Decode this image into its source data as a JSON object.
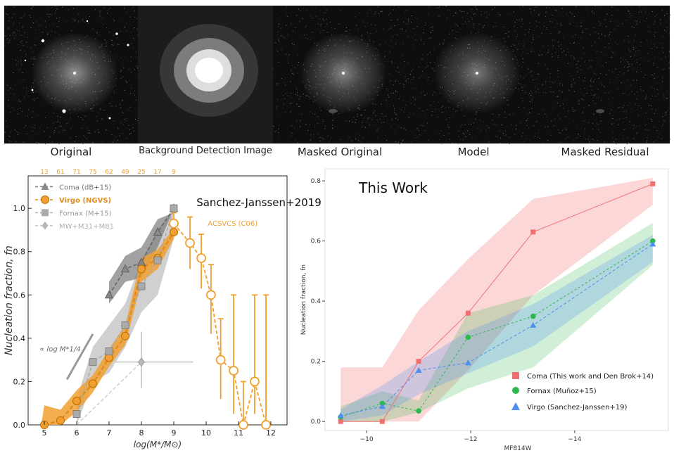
{
  "panels": [
    {
      "caption": "Original",
      "blur": 1.2,
      "core": 1.0,
      "halo": 0.55,
      "stars": true
    },
    {
      "caption": "Background Detection Image",
      "blur": 10,
      "core": 1.0,
      "halo": 1.0,
      "stars": false
    },
    {
      "caption": "Masked Original",
      "blur": 1.2,
      "core": 0.9,
      "halo": 0.5,
      "stars": false
    },
    {
      "caption": "Model",
      "blur": 1.2,
      "core": 0.9,
      "halo": 0.45,
      "stars": false
    },
    {
      "caption": "Masked Residual",
      "blur": 1.2,
      "core": 0.0,
      "halo": 0.0,
      "stars": false
    }
  ],
  "chart_data": [
    {
      "type": "line",
      "title": "Sanchez-Janssen+2019",
      "xlabel": "log(M*/M⊙)",
      "ylabel": "Nucleation fraction, fn",
      "xlim": [
        4.5,
        12.5
      ],
      "ylim": [
        0,
        1.15
      ],
      "xticks": [
        5,
        6,
        7,
        8,
        9,
        10,
        11,
        12
      ],
      "yticks": [
        "0.0",
        "0.2",
        "0.4",
        "0.6",
        "0.8",
        "1.0"
      ],
      "top_counts": {
        "x": [
          5.0,
          5.5,
          6.0,
          6.5,
          7.0,
          7.5,
          8.0,
          8.5,
          9.0
        ],
        "labels": [
          "13",
          "61",
          "71",
          "75",
          "62",
          "49",
          "25",
          "17",
          "9"
        ]
      },
      "slope_label": "∝ log M*1/4",
      "annotation": "ACSVCS (C06)",
      "legend": {
        "position": "top-left",
        "entries": [
          "Coma (dB+15)",
          "Virgo (NGVS)",
          "Fornax (M+15)",
          "MW+M31+M81"
        ]
      },
      "series": [
        {
          "name": "Coma (dB+15)",
          "color": "#888888",
          "marker": "triangle",
          "x": [
            7.0,
            7.5,
            8.0,
            8.5,
            9.0
          ],
          "y": [
            0.6,
            0.72,
            0.75,
            0.89,
            1.0
          ]
        },
        {
          "name": "Virgo (NGVS)",
          "color": "#f0a030",
          "marker": "circle",
          "x": [
            5.0,
            5.5,
            6.0,
            6.5,
            7.0,
            7.5,
            8.0,
            8.5,
            9.0
          ],
          "y": [
            0.0,
            0.02,
            0.11,
            0.19,
            0.31,
            0.41,
            0.72,
            0.77,
            0.89
          ]
        },
        {
          "name": "Fornax (M+15)",
          "color": "#aaaaaa",
          "marker": "square",
          "x": [
            6.0,
            6.5,
            7.0,
            7.5,
            8.0,
            8.5,
            9.0
          ],
          "y": [
            0.05,
            0.29,
            0.34,
            0.46,
            0.64,
            0.76,
            1.0
          ]
        },
        {
          "name": "MW+M31+M81",
          "color": "#b8b8b8",
          "marker": "diamond",
          "x": [
            8.0
          ],
          "y": [
            0.29
          ]
        },
        {
          "name": "ACSVCS (C06)",
          "color": "#f0a030",
          "marker": "open-circle",
          "x": [
            9.0,
            9.5,
            9.85,
            10.15,
            10.45,
            10.85,
            11.15,
            11.5,
            11.85
          ],
          "y": [
            0.93,
            0.84,
            0.77,
            0.6,
            0.3,
            0.25,
            0.0,
            0.2,
            0.0
          ]
        }
      ]
    },
    {
      "type": "line",
      "title": "This Work",
      "xlabel": "MF814W",
      "ylabel": "Nucleation fraction, fn",
      "xlim": [
        -9.2,
        -15.8
      ],
      "ylim": [
        -0.03,
        0.84
      ],
      "xticks": [
        "−10",
        "−12",
        "−14"
      ],
      "yticks": [
        "0.0",
        "0.2",
        "0.4",
        "0.6",
        "0.8"
      ],
      "legend": {
        "position": "bottom-right",
        "entries": [
          "Coma (This work and Den Brok+14)",
          "Fornax (Muñoz+15)",
          "Virgo (Sanchez-Janssen+19)"
        ]
      },
      "series": [
        {
          "name": "Coma (This work and Den Brok+14)",
          "color": "#f07070",
          "marker": "square",
          "x": [
            -9.5,
            -10.3,
            -11.0,
            -11.95,
            -13.2,
            -15.5
          ],
          "y": [
            0.0,
            0.0,
            0.2,
            0.36,
            0.63,
            0.79
          ]
        },
        {
          "name": "Fornax (Muñoz+15)",
          "color": "#2cb84a",
          "marker": "circle",
          "x": [
            -9.5,
            -10.3,
            -11.0,
            -11.95,
            -13.2,
            -15.5
          ],
          "y": [
            0.015,
            0.06,
            0.035,
            0.28,
            0.35,
            0.6
          ]
        },
        {
          "name": "Virgo (Sanchez-Janssen+19)",
          "color": "#4c8ff0",
          "marker": "triangle",
          "x": [
            -9.5,
            -10.3,
            -11.0,
            -11.95,
            -13.2,
            -15.5
          ],
          "y": [
            0.02,
            0.05,
            0.17,
            0.195,
            0.32,
            0.59
          ]
        }
      ]
    }
  ]
}
